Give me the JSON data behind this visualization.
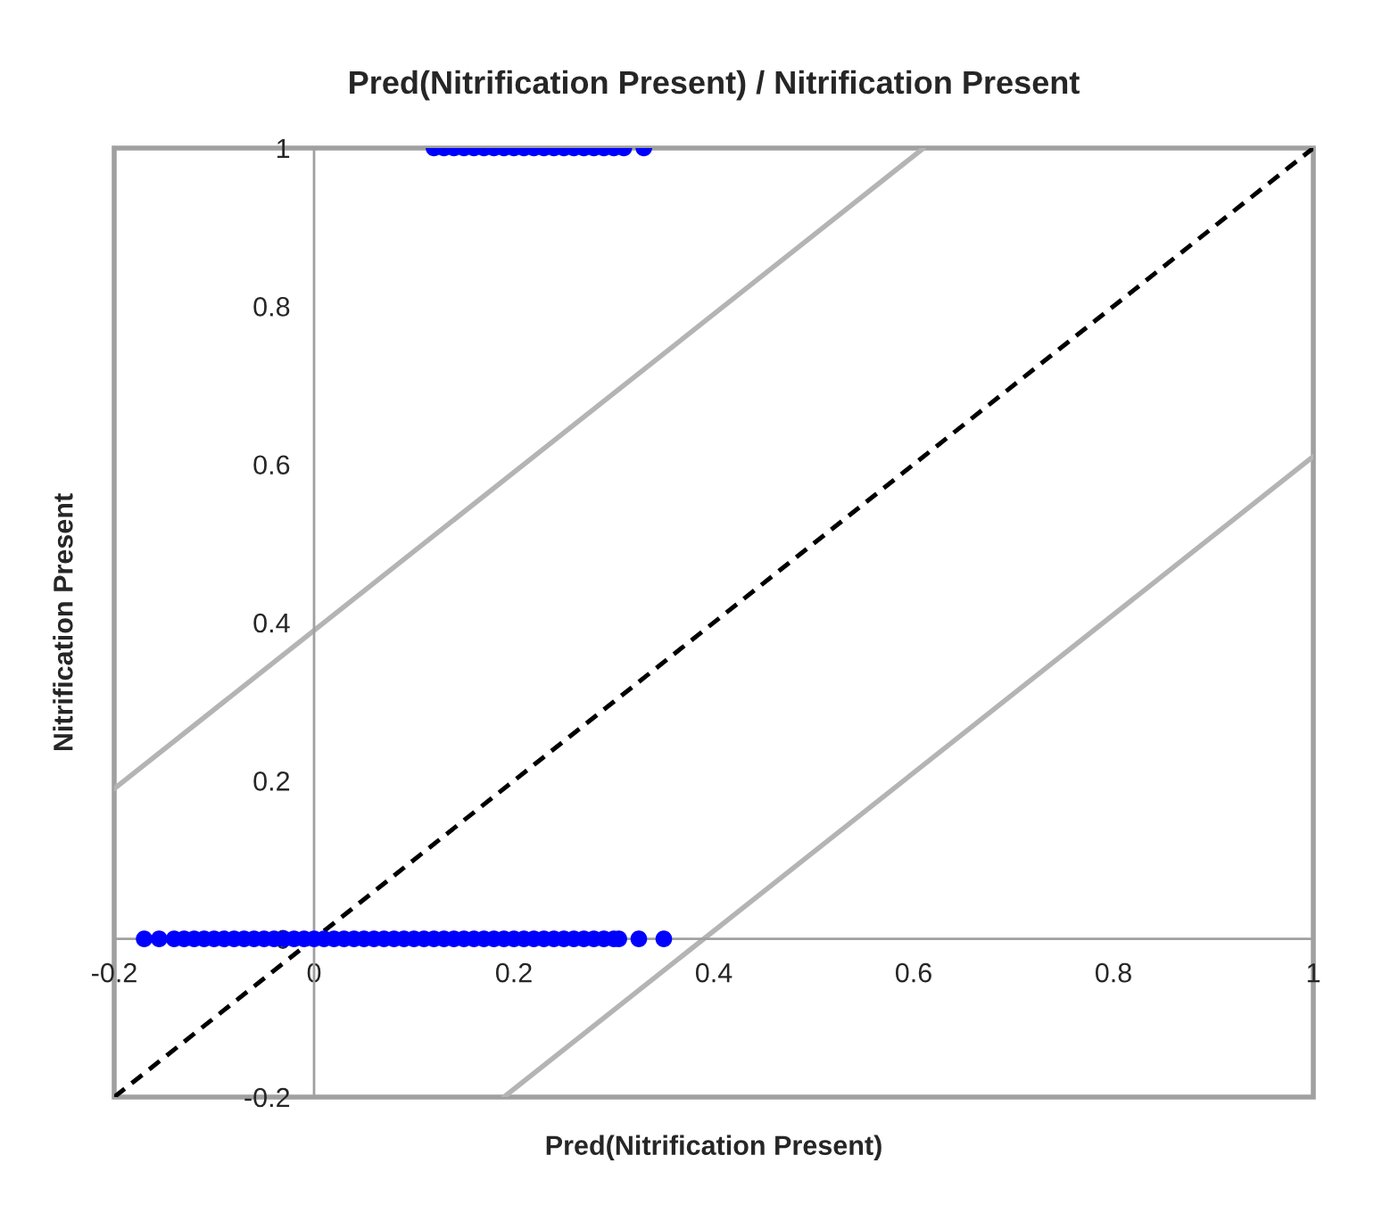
{
  "chart_data": {
    "type": "scatter",
    "title": "Pred(Nitrification Present) / Nitrification Present",
    "xlabel": "Pred(Nitrification Present)",
    "ylabel": "Nitrification Present",
    "xlim": [
      -0.2,
      1
    ],
    "ylim": [
      -0.2,
      1
    ],
    "xticks": [
      -0.2,
      0,
      0.2,
      0.4,
      0.6,
      0.8,
      1
    ],
    "yticks": [
      -0.2,
      0,
      0.2,
      0.4,
      0.6,
      0.8,
      1
    ],
    "grid": false,
    "legend": false,
    "series": [
      {
        "marker": "circle",
        "color": "#0000ff",
        "x": [
          0.12,
          0.13,
          0.14,
          0.15,
          0.16,
          0.17,
          0.18,
          0.19,
          0.2,
          0.21,
          0.22,
          0.23,
          0.24,
          0.25,
          0.26,
          0.27,
          0.28,
          0.29,
          0.3,
          0.31,
          0.33
        ],
        "values": [
          1,
          1,
          1,
          1,
          1,
          1,
          1,
          1,
          1,
          1,
          1,
          1,
          1,
          1,
          1,
          1,
          1,
          1,
          1,
          1,
          1
        ]
      },
      {
        "marker": "circle",
        "color": "#0000ff",
        "x": [
          -0.17,
          -0.155,
          -0.14,
          -0.13,
          -0.12,
          -0.11,
          -0.1,
          -0.09,
          -0.08,
          -0.07,
          -0.06,
          -0.05,
          -0.04,
          -0.03,
          -0.02,
          -0.01,
          0,
          0.01,
          0.02,
          0.03,
          0.04,
          0.05,
          0.06,
          0.07,
          0.08,
          0.09,
          0.1,
          0.11,
          0.12,
          0.13,
          0.14,
          0.15,
          0.16,
          0.17,
          0.18,
          0.19,
          0.2,
          0.21,
          0.22,
          0.23,
          0.24,
          0.25,
          0.26,
          0.27,
          0.28,
          0.29,
          0.3,
          0.305,
          0.325,
          0.35
        ],
        "values": [
          0,
          0,
          0,
          0,
          0,
          0,
          0,
          0,
          0,
          0,
          0,
          0,
          0,
          0,
          0,
          0,
          0,
          0,
          0,
          0,
          0,
          0,
          0,
          0,
          0,
          0,
          0,
          0,
          0,
          0,
          0,
          0,
          0,
          0,
          0,
          0,
          0,
          0,
          0,
          0,
          0,
          0,
          0,
          0,
          0,
          0,
          0,
          0,
          0,
          0
        ]
      },
      {
        "type": "line",
        "color": "#000000",
        "line_style": "dashed",
        "x": [
          -0.2,
          1
        ],
        "values": [
          -0.2,
          1
        ]
      },
      {
        "type": "line",
        "color": "#b4b4b4",
        "line_style": "solid",
        "x": [
          -0.2,
          0.61
        ],
        "values": [
          0.19,
          1
        ]
      },
      {
        "type": "line",
        "color": "#b4b4b4",
        "line_style": "solid",
        "x": [
          0.19,
          1
        ],
        "values": [
          -0.2,
          0.61
        ]
      }
    ]
  }
}
